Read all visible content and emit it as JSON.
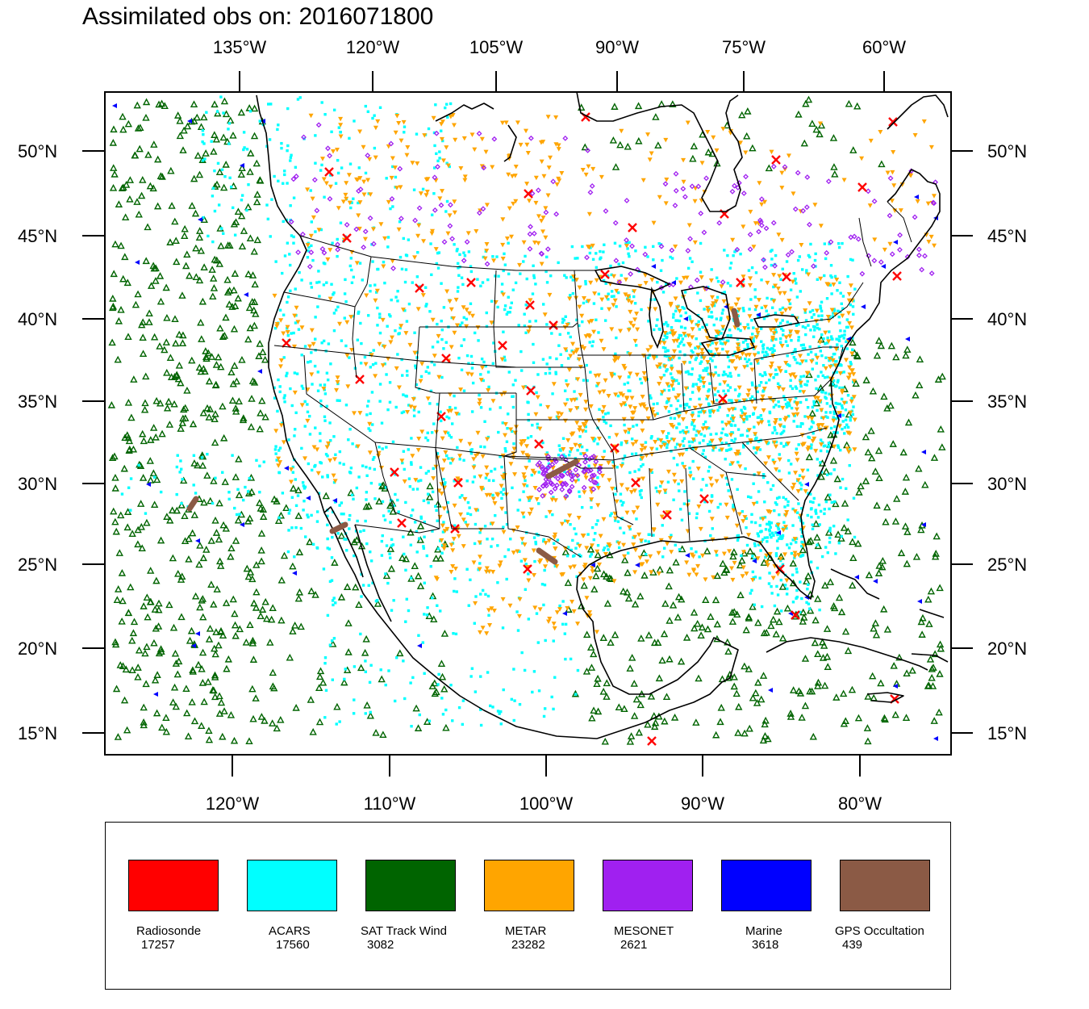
{
  "title": "Assimilated obs on: 2016071800",
  "axes": {
    "top_lon_labels": [
      "135°W",
      "120°W",
      "105°W",
      "90°W",
      "75°W",
      "60°W"
    ],
    "bottom_lon_labels": [
      "120°W",
      "110°W",
      "100°W",
      "90°W",
      "80°W"
    ],
    "lat_labels": [
      "50°N",
      "45°N",
      "40°N",
      "35°N",
      "30°N",
      "25°N",
      "20°N",
      "15°N"
    ]
  },
  "legend": [
    {
      "name": "Radiosonde",
      "count": "17257",
      "color": "#ff0000"
    },
    {
      "name": "ACARS",
      "count": "17560",
      "color": "#00ffff"
    },
    {
      "name": "SAT Track Wind",
      "count": "3082",
      "color": "#006400"
    },
    {
      "name": "METAR",
      "count": "23282",
      "color": "#ffa500"
    },
    {
      "name": "MESONET",
      "count": "2621",
      "color": "#a020f0"
    },
    {
      "name": "Marine",
      "count": "3618",
      "color": "#0000ff"
    },
    {
      "name": "GPS Occultation",
      "count": "439",
      "color": "#8b5a45"
    }
  ],
  "colors": {
    "sat_track_wind": "#006400",
    "acars": "#00ffff",
    "metar": "#ffa500",
    "mesonet": "#a020f0",
    "marine": "#0000ff",
    "radiosonde": "#ff0000",
    "gps": "#8b5a45"
  }
}
